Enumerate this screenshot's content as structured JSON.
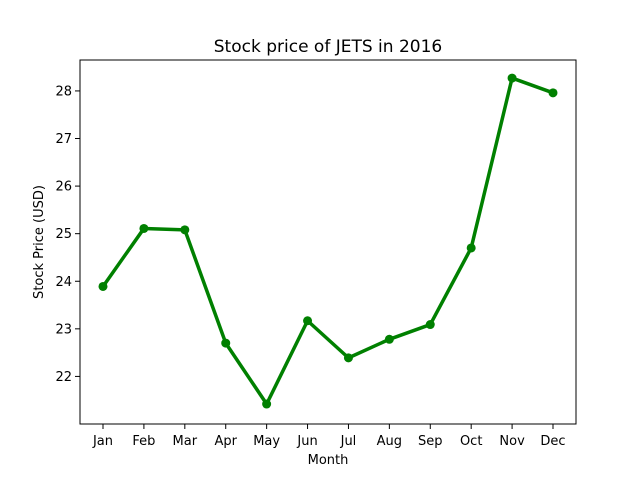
{
  "chart_data": {
    "type": "line",
    "title": "Stock price of JETS in 2016",
    "xlabel": "Month",
    "ylabel": "Stock Price (USD)",
    "categories": [
      "Jan",
      "Feb",
      "Mar",
      "Apr",
      "May",
      "Jun",
      "Jul",
      "Aug",
      "Sep",
      "Oct",
      "Nov",
      "Dec"
    ],
    "series": [
      {
        "values": [
          23.89,
          25.11,
          25.08,
          22.7,
          21.42,
          23.17,
          22.39,
          22.78,
          23.09,
          24.7,
          28.27,
          27.96
        ],
        "color": "#008000"
      }
    ],
    "yticks": [
      22,
      23,
      24,
      25,
      26,
      27,
      28
    ],
    "ylim": [
      21.0,
      28.65
    ],
    "grid": false,
    "legend": "none"
  }
}
